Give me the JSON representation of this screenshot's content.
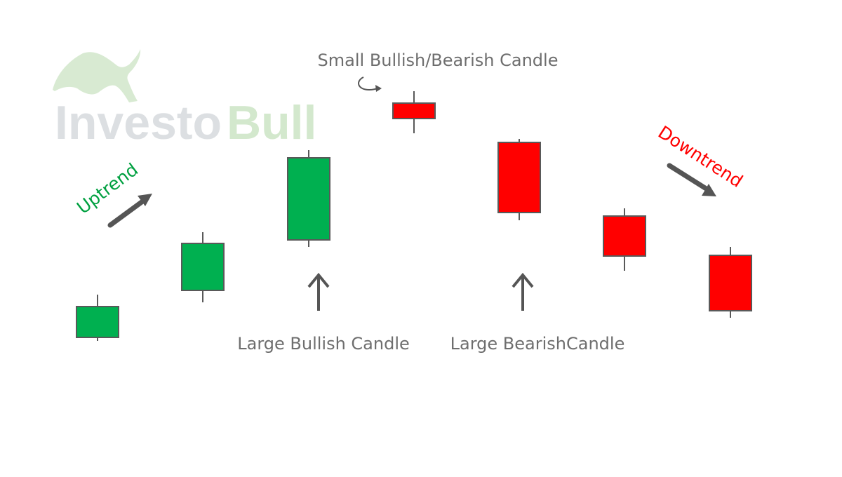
{
  "logo": {
    "text_a": "Investo",
    "text_b": "Bull",
    "color_a": "#dcdfe2",
    "color_b": "#d3e8cd",
    "emblem": "bull-logo-icon"
  },
  "labels": {
    "small_candle": "Small Bullish/Bearish Candle",
    "large_bullish": "Large Bullish Candle",
    "large_bearish": "Large BearishCandle",
    "uptrend": "Uptrend",
    "downtrend": "Downtrend"
  },
  "colors": {
    "bullish": "#00b050",
    "bearish": "#ff0000",
    "wick": "#595959",
    "uptrend_text": "#00a040",
    "downtrend_text": "#ff0000",
    "caption_text": "#6e6e6e"
  },
  "candles": [
    {
      "type": "bullish",
      "open": 1,
      "close": 2,
      "high": 2.4,
      "low": 0.9
    },
    {
      "type": "bullish",
      "open": 2,
      "close": 3.5,
      "high": 3.9,
      "low": 1.7
    },
    {
      "type": "bullish",
      "open": 3.5,
      "close": 6.1,
      "high": 6.35,
      "low": 3.3
    },
    {
      "type": "bearish",
      "open": 6.8,
      "close": 6.3,
      "high": 7.2,
      "low": 6.0
    },
    {
      "type": "bearish",
      "open": 5.9,
      "close": 3.7,
      "high": 6.0,
      "low": 3.45
    },
    {
      "type": "bearish",
      "open": 3.75,
      "close": 2.5,
      "high": 4.0,
      "low": 2.0
    },
    {
      "type": "bearish",
      "open": 2.5,
      "close": 0.75,
      "high": 2.75,
      "low": 0.55
    }
  ]
}
